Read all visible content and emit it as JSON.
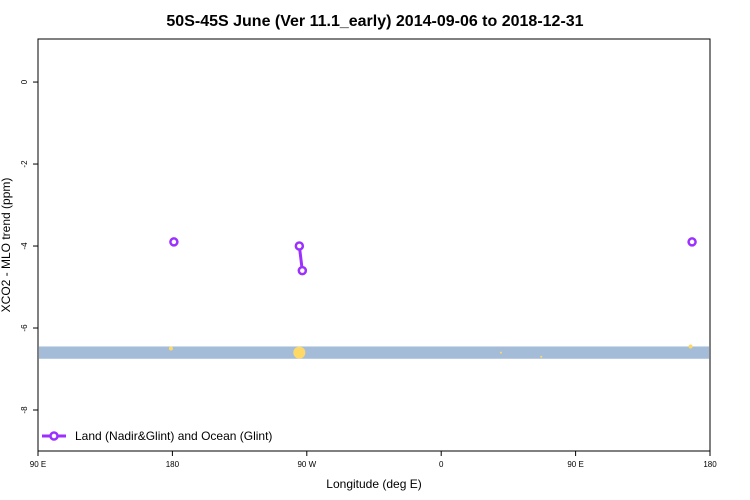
{
  "chart_data": {
    "type": "line",
    "title": "50S-45S June (Ver 11.1_early)   2014-09-06 to 2018-12-31",
    "xlabel": "Longitude (deg E)",
    "ylabel": "XCO2 - MLO trend (ppm)",
    "xlim": [
      90,
      450
    ],
    "ylim": [
      -9,
      1.05
    ],
    "x_ticks": [
      {
        "value": 90,
        "label": "90 E"
      },
      {
        "value": 180,
        "label": "180"
      },
      {
        "value": 270,
        "label": "90 W"
      },
      {
        "value": 360,
        "label": "0"
      },
      {
        "value": 450,
        "label": "90 E"
      },
      {
        "value": 540,
        "label": "180"
      }
    ],
    "y_ticks": [
      {
        "value": 0,
        "label": "0"
      },
      {
        "value": -2,
        "label": "-2"
      },
      {
        "value": -4,
        "label": "-4"
      },
      {
        "value": -6,
        "label": "-6"
      },
      {
        "value": -8,
        "label": "-8"
      }
    ],
    "series": [
      {
        "name": "Land (Nadir&Glint) and Ocean (Glint)",
        "color": "#9b30ff",
        "points": [
          {
            "x": 181,
            "y": -3.9
          },
          {
            "x": 265,
            "y": -4.0
          },
          {
            "x": 267,
            "y": -4.6
          },
          {
            "x": 528,
            "y": -3.9
          }
        ],
        "segments": [
          [
            1,
            2
          ]
        ]
      }
    ],
    "land_band": {
      "y_from": -6.75,
      "y_to": -6.45,
      "color": "#a5bcd9"
    },
    "land_dots": {
      "color": "#ffd966",
      "points": [
        {
          "x": 179,
          "y": -6.5,
          "size": 2
        },
        {
          "x": 265,
          "y": -6.6,
          "size": 6
        },
        {
          "x": 400,
          "y": -6.6,
          "size": 1
        },
        {
          "x": 427,
          "y": -6.7,
          "size": 1
        },
        {
          "x": 527,
          "y": -6.45,
          "size": 2
        }
      ]
    },
    "legend_position": "bottom-left",
    "grid": false
  }
}
